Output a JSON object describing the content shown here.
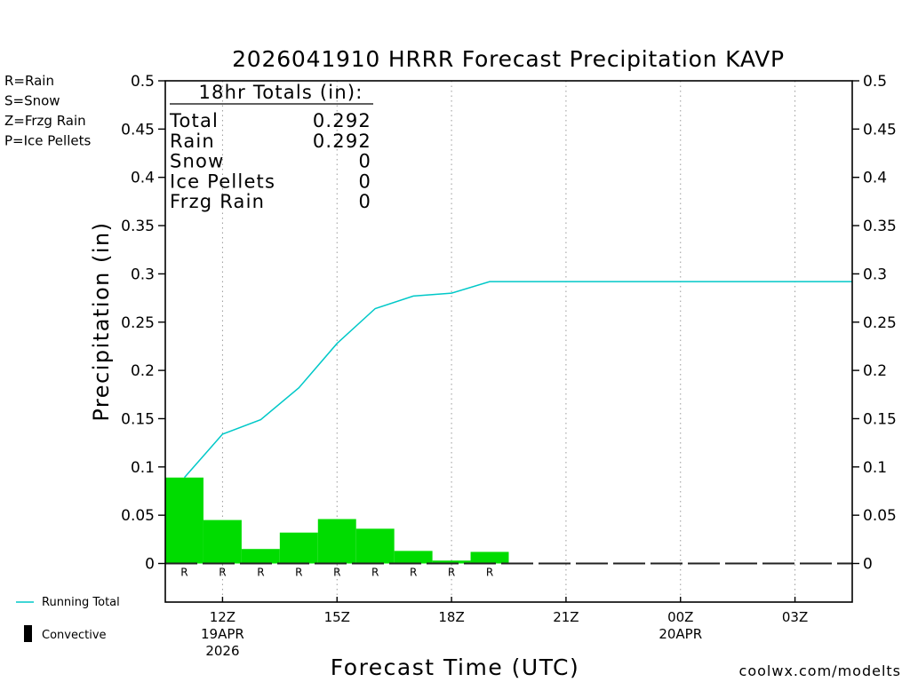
{
  "chart_data": {
    "type": "bar",
    "title": "2026041910 HRRR Forecast Precipitation KAVP",
    "xlabel": "Forecast Time (UTC)",
    "ylabel": "Precipitation (in)",
    "ylim": [
      -0.04,
      0.5
    ],
    "yticks": [
      0,
      0.05,
      0.1,
      0.15,
      0.2,
      0.25,
      0.3,
      0.35,
      0.4,
      0.45,
      0.5
    ],
    "ytick_labels": [
      "0",
      "0.05",
      "0.1",
      "0.15",
      "0.2",
      "0.25",
      "0.3",
      "0.35",
      "0.4",
      "0.45",
      "0.5"
    ],
    "xlim": [
      10.5,
      28.5
    ],
    "xticks": [
      {
        "hour": 12,
        "label": "12Z",
        "date": "19APR",
        "year": "2026"
      },
      {
        "hour": 15,
        "label": "15Z"
      },
      {
        "hour": 18,
        "label": "18Z"
      },
      {
        "hour": 21,
        "label": "21Z"
      },
      {
        "hour": 24,
        "label": "00Z",
        "date": "20APR"
      },
      {
        "hour": 27,
        "label": "03Z"
      }
    ],
    "bars": [
      {
        "hour": 11,
        "value": 0.089,
        "type": "R"
      },
      {
        "hour": 12,
        "value": 0.045,
        "type": "R"
      },
      {
        "hour": 13,
        "value": 0.015,
        "type": "R"
      },
      {
        "hour": 14,
        "value": 0.032,
        "type": "R"
      },
      {
        "hour": 15,
        "value": 0.046,
        "type": "R"
      },
      {
        "hour": 16,
        "value": 0.036,
        "type": "R"
      },
      {
        "hour": 17,
        "value": 0.013,
        "type": "R"
      },
      {
        "hour": 18,
        "value": 0.003,
        "type": "R"
      },
      {
        "hour": 19,
        "value": 0.012,
        "type": "R"
      }
    ],
    "running_total": {
      "hours": [
        11,
        12,
        13,
        14,
        15,
        16,
        17,
        18,
        19,
        20,
        21,
        22,
        23,
        24,
        25,
        26,
        27,
        28,
        28.5
      ],
      "values": [
        0.089,
        0.134,
        0.149,
        0.182,
        0.228,
        0.264,
        0.277,
        0.28,
        0.292,
        0.292,
        0.292,
        0.292,
        0.292,
        0.292,
        0.292,
        0.292,
        0.292,
        0.292,
        0.292
      ]
    },
    "zero_line_hours": [
      11,
      28
    ],
    "totals_box": {
      "header": "18hr Totals (in):",
      "rows": [
        {
          "label": "Total",
          "value": "0.292"
        },
        {
          "label": "Rain",
          "value": "0.292"
        },
        {
          "label": "Snow",
          "value": "0"
        },
        {
          "label": "Ice Pellets",
          "value": "0"
        },
        {
          "label": "Frzg Rain",
          "value": "0"
        }
      ]
    },
    "type_legend": [
      {
        "text": "R=Rain",
        "color": "#22dd22"
      },
      {
        "text": "S=Snow",
        "color": "#3355ee"
      },
      {
        "text": "Z=Frzg Rain",
        "color": "#ee8833"
      },
      {
        "text": "P=Ice Pellets",
        "color": "#ee1199"
      }
    ],
    "series_legend": [
      {
        "name": "Running Total",
        "color": "#00c8c8"
      },
      {
        "name": "Convective",
        "color": "#000000"
      }
    ],
    "colors": {
      "bar": "#00dc00",
      "running_total": "#00c8c8",
      "type_letter": "#00c000",
      "credit": "#dd2222"
    }
  },
  "credit": "coolwx.com/modelts"
}
